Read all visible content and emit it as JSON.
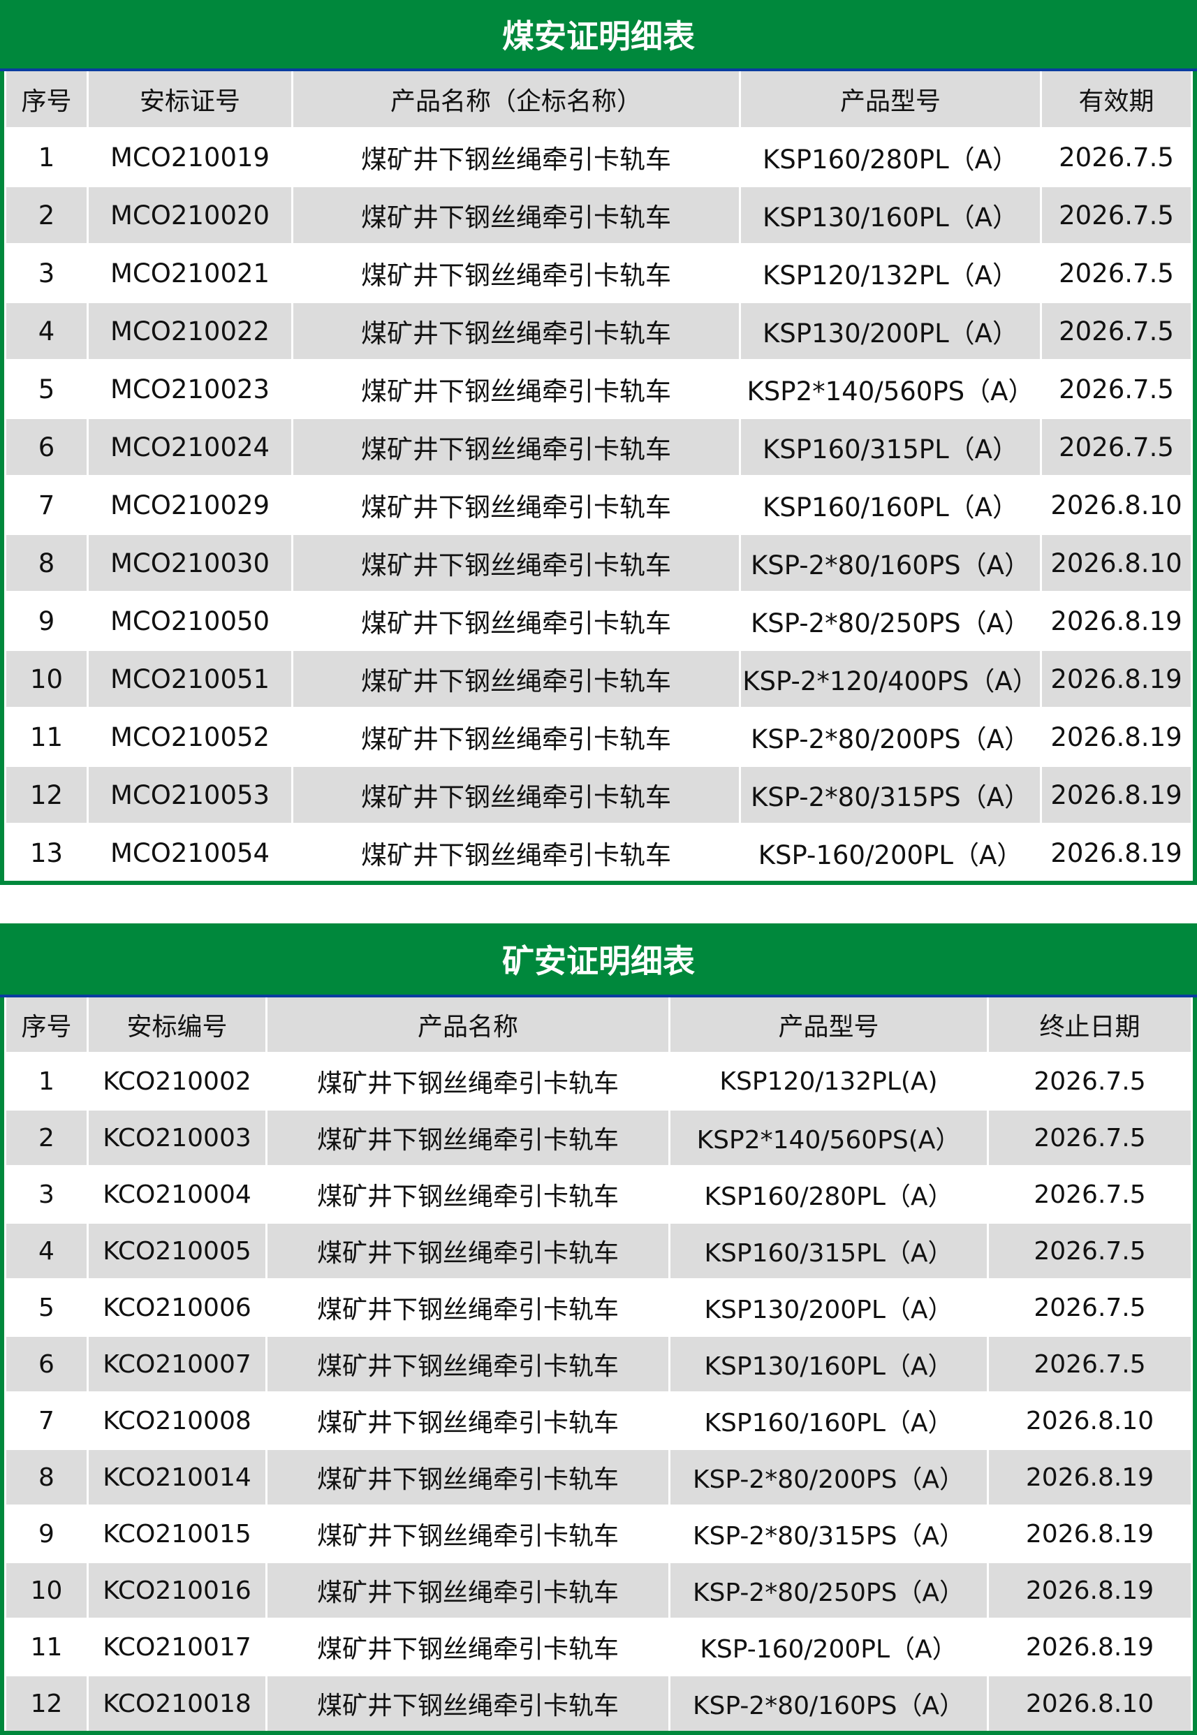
{
  "table1": {
    "title": "煤安证明细表",
    "headers": [
      "序号",
      "安标证号",
      "产品名称（企标名称）",
      "产品型号",
      "有效期"
    ],
    "rows": [
      [
        "1",
        "MCO210019",
        "煤矿井下钢丝绳牵引卡轨车",
        "KSP160/280PL（A）",
        "2026.7.5"
      ],
      [
        "2",
        "MCO210020",
        "煤矿井下钢丝绳牵引卡轨车",
        "KSP130/160PL（A）",
        "2026.7.5"
      ],
      [
        "3",
        "MCO210021",
        "煤矿井下钢丝绳牵引卡轨车",
        "KSP120/132PL（A）",
        "2026.7.5"
      ],
      [
        "4",
        "MCO210022",
        "煤矿井下钢丝绳牵引卡轨车",
        "KSP130/200PL（A）",
        "2026.7.5"
      ],
      [
        "5",
        "MCO210023",
        "煤矿井下钢丝绳牵引卡轨车",
        "KSP2*140/560PS（A）",
        "2026.7.5"
      ],
      [
        "6",
        "MCO210024",
        "煤矿井下钢丝绳牵引卡轨车",
        "KSP160/315PL（A）",
        "2026.7.5"
      ],
      [
        "7",
        "MCO210029",
        "煤矿井下钢丝绳牵引卡轨车",
        "KSP160/160PL（A）",
        "2026.8.10"
      ],
      [
        "8",
        "MCO210030",
        "煤矿井下钢丝绳牵引卡轨车",
        "KSP-2*80/160PS（A）",
        "2026.8.10"
      ],
      [
        "9",
        "MCO210050",
        "煤矿井下钢丝绳牵引卡轨车",
        "KSP-2*80/250PS（A）",
        "2026.8.19"
      ],
      [
        "10",
        "MCO210051",
        "煤矿井下钢丝绳牵引卡轨车",
        "KSP-2*120/400PS（A）",
        "2026.8.19"
      ],
      [
        "11",
        "MCO210052",
        "煤矿井下钢丝绳牵引卡轨车",
        "KSP-2*80/200PS（A）",
        "2026.8.19"
      ],
      [
        "12",
        "MCO210053",
        "煤矿井下钢丝绳牵引卡轨车",
        "KSP-2*80/315PS（A）",
        "2026.8.19"
      ],
      [
        "13",
        "MCO210054",
        "煤矿井下钢丝绳牵引卡轨车",
        "KSP-160/200PL（A）",
        "2026.8.19"
      ]
    ]
  },
  "table2": {
    "title": "矿安证明细表",
    "headers": [
      "序号",
      "安标编号",
      "产品名称",
      "产品型号",
      "终止日期"
    ],
    "rows": [
      [
        "1",
        "KCO210002",
        "煤矿井下钢丝绳牵引卡轨车",
        "KSP120/132PL(A)",
        "2026.7.5"
      ],
      [
        "2",
        "KCO210003",
        "煤矿井下钢丝绳牵引卡轨车",
        "KSP2*140/560PS(A）",
        "2026.7.5"
      ],
      [
        "3",
        "KCO210004",
        "煤矿井下钢丝绳牵引卡轨车",
        "KSP160/280PL（A）",
        "2026.7.5"
      ],
      [
        "4",
        "KCO210005",
        "煤矿井下钢丝绳牵引卡轨车",
        "KSP160/315PL（A）",
        "2026.7.5"
      ],
      [
        "5",
        "KCO210006",
        "煤矿井下钢丝绳牵引卡轨车",
        "KSP130/200PL（A）",
        "2026.7.5"
      ],
      [
        "6",
        "KCO210007",
        "煤矿井下钢丝绳牵引卡轨车",
        "KSP130/160PL（A）",
        "2026.7.5"
      ],
      [
        "7",
        "KCO210008",
        "煤矿井下钢丝绳牵引卡轨车",
        "KSP160/160PL（A）",
        "2026.8.10"
      ],
      [
        "8",
        "KCO210014",
        "煤矿井下钢丝绳牵引卡轨车",
        "KSP-2*80/200PS（A）",
        "2026.8.19"
      ],
      [
        "9",
        "KCO210015",
        "煤矿井下钢丝绳牵引卡轨车",
        "KSP-2*80/315PS（A）",
        "2026.8.19"
      ],
      [
        "10",
        "KCO210016",
        "煤矿井下钢丝绳牵引卡轨车",
        "KSP-2*80/250PS（A）",
        "2026.8.19"
      ],
      [
        "11",
        "KCO210017",
        "煤矿井下钢丝绳牵引卡轨车",
        "KSP-160/200PL（A）",
        "2026.8.19"
      ],
      [
        "12",
        "KCO210018",
        "煤矿井下钢丝绳牵引卡轨车",
        "KSP-2*80/160PS（A）",
        "2026.8.10"
      ]
    ]
  },
  "colors": {
    "header_green": "#00883c",
    "title_rule_blue": "#0a3ca0",
    "stripe_gray": "#dcdcdc"
  }
}
